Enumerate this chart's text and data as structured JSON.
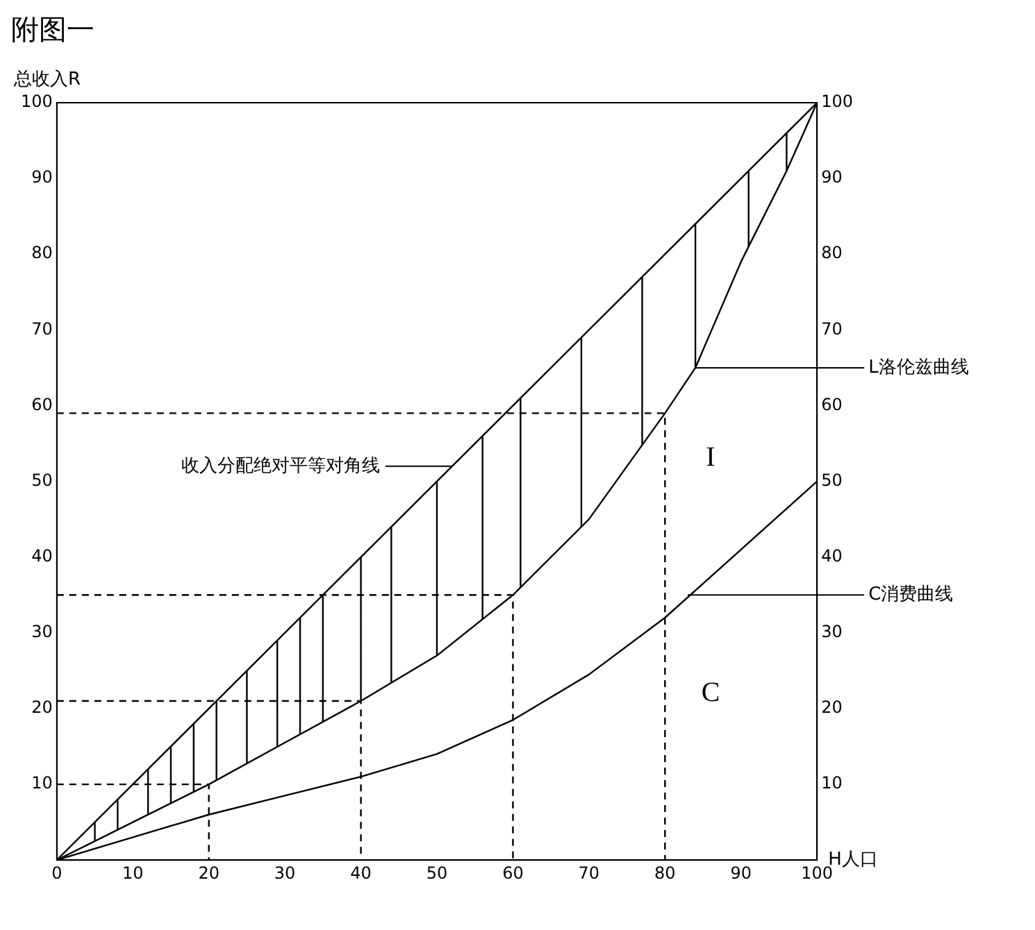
{
  "chart_data": {
    "type": "line",
    "title": "附图一",
    "ylabel": "总收入R",
    "xlabel": "H人口",
    "xlim": [
      0,
      100
    ],
    "xticks": [
      0,
      10,
      20,
      30,
      40,
      50,
      60,
      70,
      80,
      90,
      100
    ],
    "ylim": [
      0,
      100
    ],
    "yticks": [
      10,
      20,
      30,
      40,
      50,
      60,
      70,
      80,
      90,
      100
    ],
    "y2lim": [
      0,
      100
    ],
    "y2ticks": [
      10,
      20,
      30,
      40,
      50,
      60,
      70,
      80,
      90,
      100
    ],
    "grid": false,
    "legend": false,
    "marker": "none",
    "series": [
      {
        "color": "#000000",
        "x": [
          0,
          100
        ],
        "values": [
          0,
          100
        ],
        "line_style": "solid"
      },
      {
        "color": "#000000",
        "x": [
          0,
          10,
          20,
          30,
          40,
          50,
          60,
          70,
          80,
          84,
          90,
          96,
          100
        ],
        "values": [
          0,
          5,
          10,
          15.5,
          21,
          27,
          35,
          45,
          59,
          65,
          79,
          91,
          100
        ],
        "line_style": "solid"
      },
      {
        "color": "#000000",
        "x": [
          0,
          10,
          20,
          30,
          40,
          50,
          60,
          70,
          80,
          90,
          100
        ],
        "values": [
          0,
          3,
          6,
          8.5,
          11,
          14,
          18.5,
          24.5,
          32,
          41,
          50
        ],
        "line_style": "solid"
      },
      {
        "color": "#000000",
        "x": [
          0,
          20,
          20
        ],
        "values": [
          10,
          10,
          0
        ],
        "line_style": "dashed"
      },
      {
        "color": "#000000",
        "x": [
          0,
          40,
          40
        ],
        "values": [
          21,
          21,
          0
        ],
        "line_style": "dashed"
      },
      {
        "color": "#000000",
        "x": [
          0,
          60,
          60
        ],
        "values": [
          35,
          35,
          0
        ],
        "line_style": "dashed"
      },
      {
        "color": "#000000",
        "x": [
          0,
          80,
          80
        ],
        "values": [
          59,
          59,
          0
        ],
        "line_style": "dashed"
      },
      {
        "color": "#000000",
        "x": [
          5,
          5,
          null,
          8,
          8,
          null,
          12,
          12,
          null,
          15,
          15,
          null,
          18,
          18,
          null,
          21,
          21,
          null,
          25,
          25,
          null,
          29,
          29,
          null,
          32,
          32,
          null,
          35,
          35,
          null,
          40,
          40,
          null,
          44,
          44,
          null,
          50,
          50,
          null,
          56,
          56,
          null,
          61,
          61,
          null,
          69,
          69,
          null,
          77,
          77,
          null,
          84,
          84,
          null,
          91,
          91,
          null,
          96,
          96
        ],
        "values": [
          2.5,
          5,
          null,
          4,
          8,
          null,
          6,
          12,
          null,
          7.5,
          15,
          null,
          9,
          18,
          null,
          10.5,
          21,
          null,
          12.8,
          25,
          null,
          15,
          29,
          null,
          16.6,
          32,
          null,
          18.3,
          35,
          null,
          21,
          40,
          null,
          23.4,
          44,
          null,
          27,
          50,
          null,
          31.8,
          56,
          null,
          36,
          61,
          null,
          44,
          69,
          null,
          54.8,
          77,
          null,
          65,
          84,
          null,
          81,
          91,
          null,
          91,
          96
        ],
        "line_style": "solid"
      }
    ],
    "annotations": [
      "收入分配绝对平等对角线",
      {
        "text": "L洛伦兹曲线",
        "x": 84,
        "y": 65
      },
      {
        "text": "C消费曲线",
        "x": 83,
        "y": 35
      },
      "I",
      "C"
    ]
  }
}
